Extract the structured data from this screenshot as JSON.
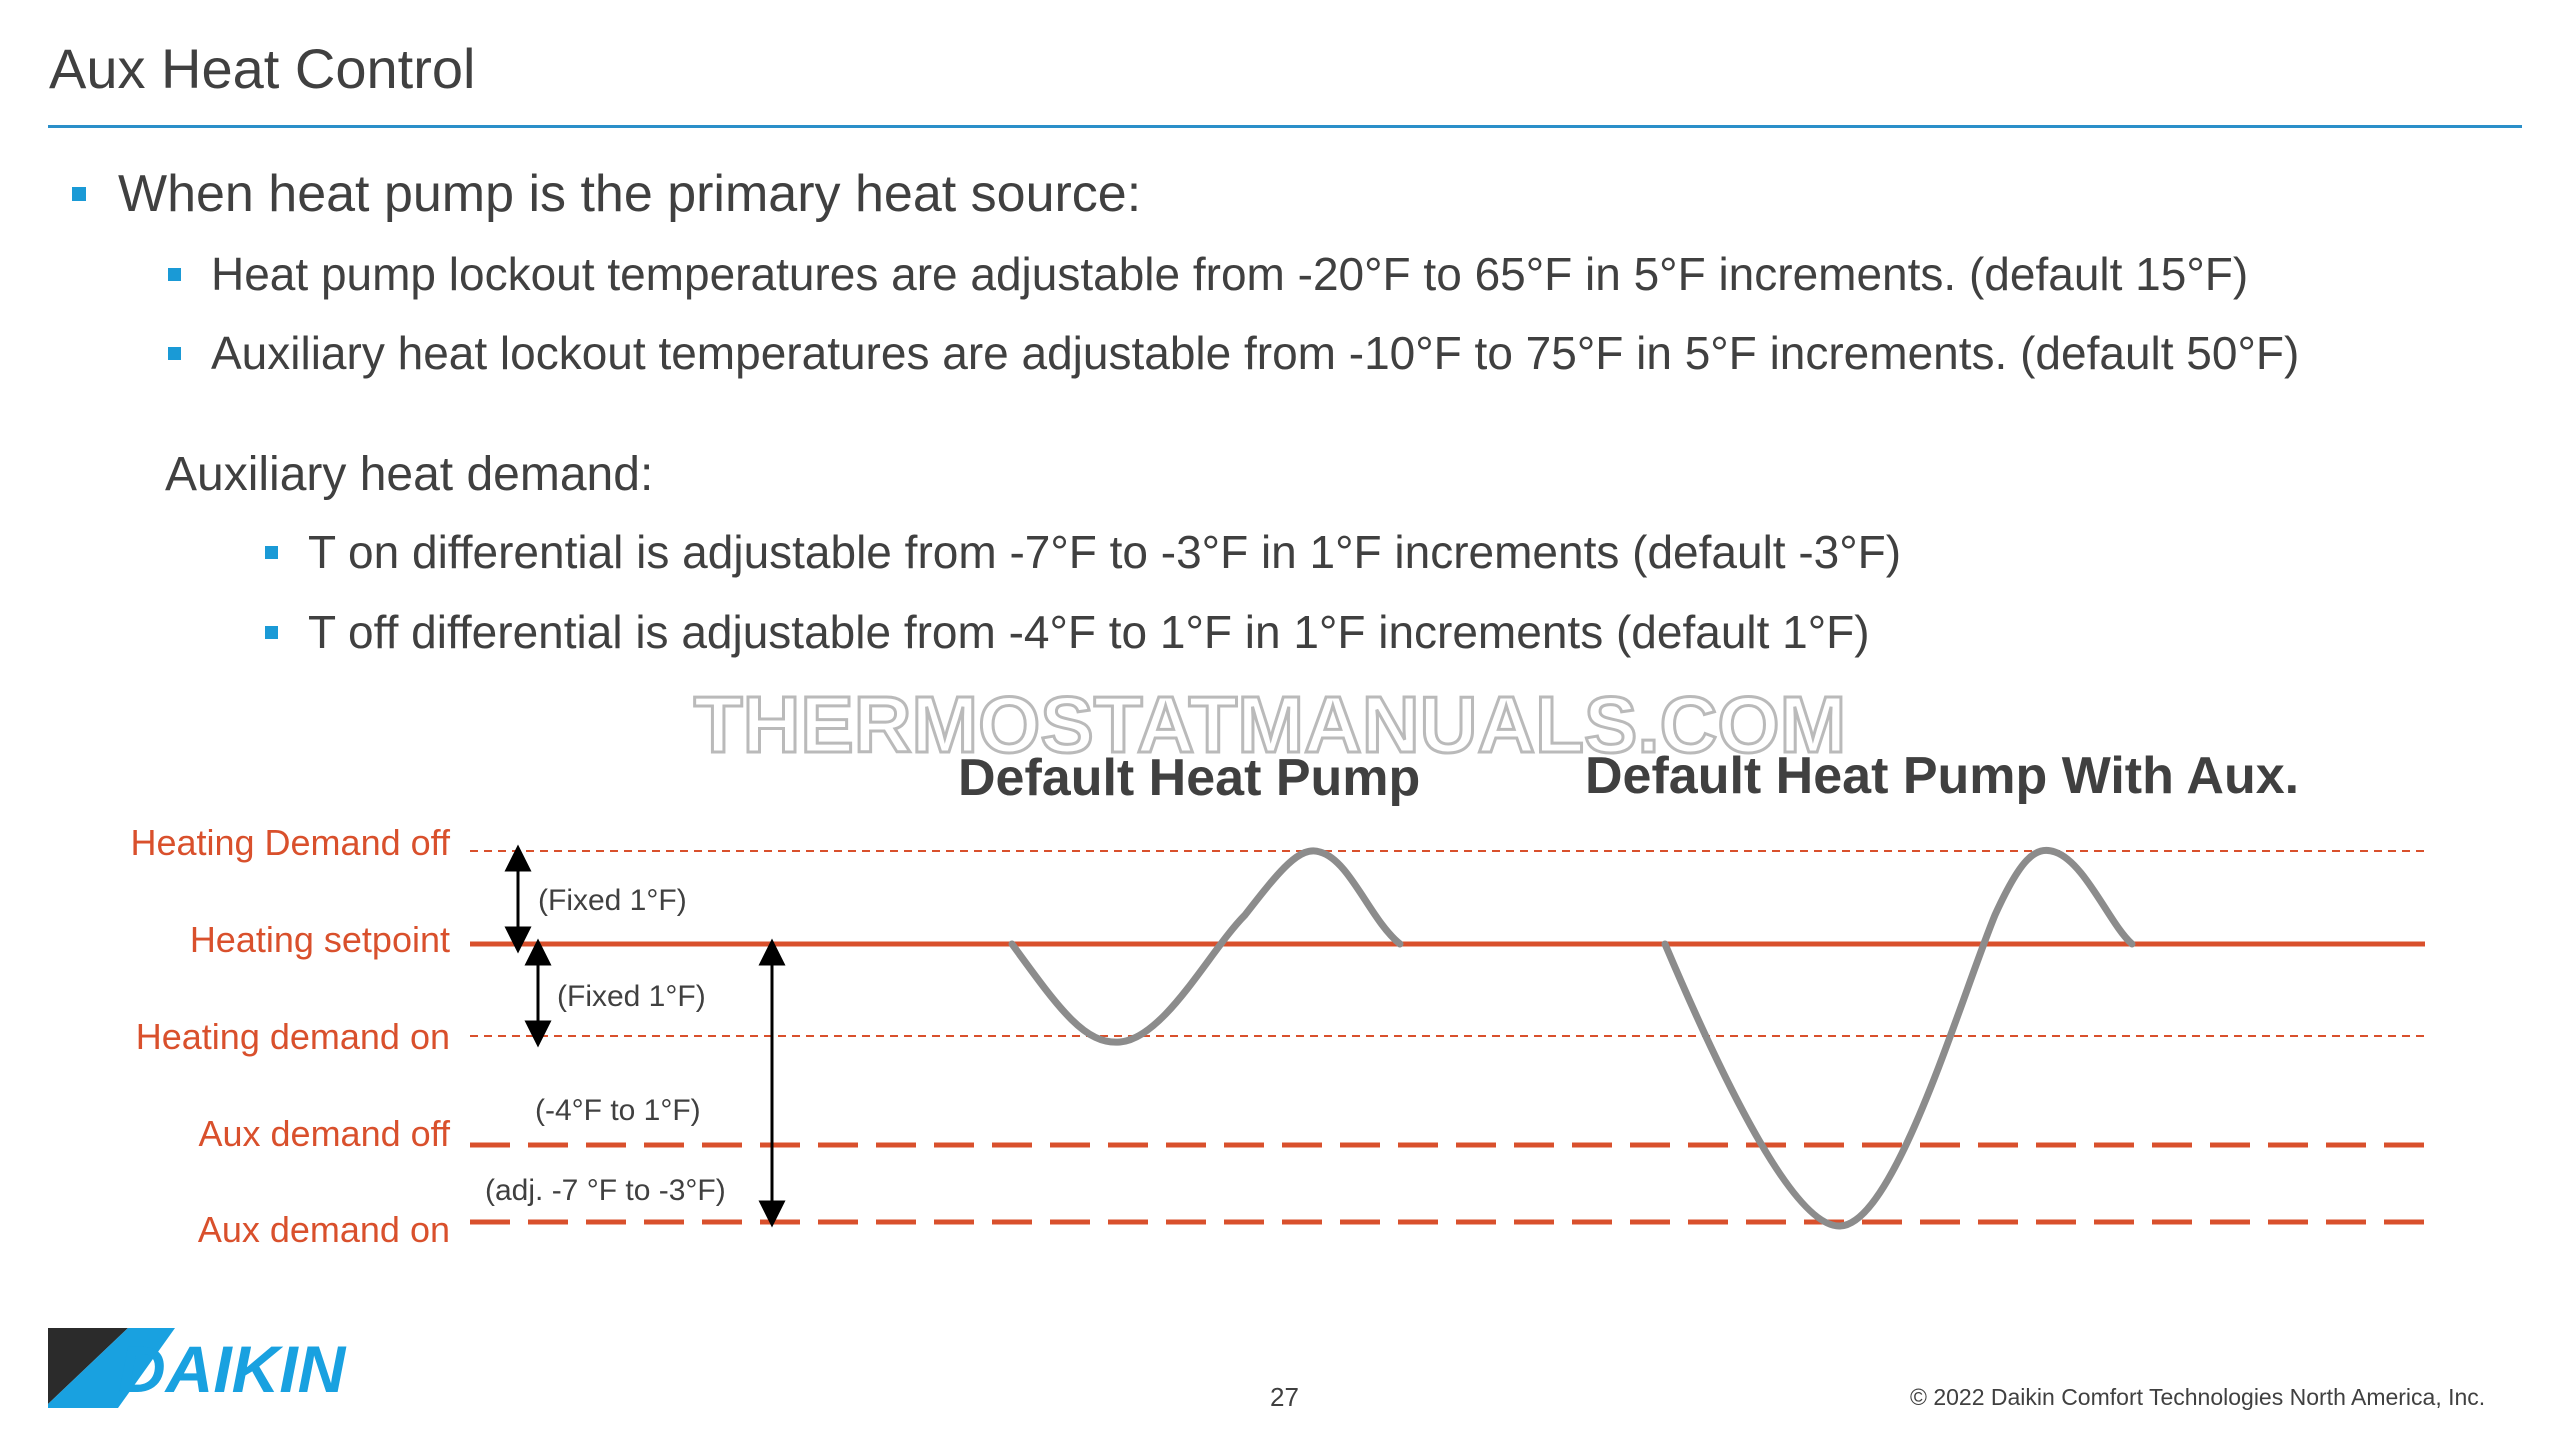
{
  "slide": {
    "title": "Aux Heat Control",
    "bullets": {
      "main": "When heat pump is the primary heat source:",
      "hp_lockout": "Heat pump lockout temperatures are adjustable from -20°F to 65°F in 5°F increments. (default 15°F)",
      "aux_lockout": "Auxiliary heat lockout temperatures are adjustable from -10°F to 75°F in 5°F increments. (default 50°F)"
    },
    "aux_demand_heading": "Auxiliary heat demand:",
    "aux_bullets": {
      "t_on": "T on differential is adjustable from -7°F to -3°F in 1°F increments (default -3°F)",
      "t_off": "T off differential is adjustable from -4°F to 1°F in 1°F increments (default 1°F)"
    },
    "page_number": "27",
    "copyright": "© 2022 Daikin Comfort Technologies North America, Inc.",
    "logo_text": "DAIKIN",
    "watermark": "THERMOSTATMANUALS.COM"
  },
  "diagram": {
    "headings": {
      "heat_pump": "Default Heat Pump",
      "heat_pump_aux": "Default Heat Pump With Aux."
    },
    "levels": {
      "demand_off": "Heating Demand off",
      "setpoint": "Heating setpoint",
      "demand_on": "Heating demand on",
      "aux_off": "Aux demand off",
      "aux_on": "Aux demand on"
    },
    "annotations": {
      "fixed_upper": "(Fixed 1°F)",
      "fixed_lower": "(Fixed 1°F)",
      "aux_off_range": "(-4°F to 1°F)",
      "aux_on_range": "(adj. -7 °F to -3°F)"
    },
    "colors": {
      "accent": "#1a9ad6",
      "level_line": "#d9502c",
      "level_label": "#d9502c",
      "wave": "#8c8c8c",
      "dotted": "#d9502c"
    }
  }
}
